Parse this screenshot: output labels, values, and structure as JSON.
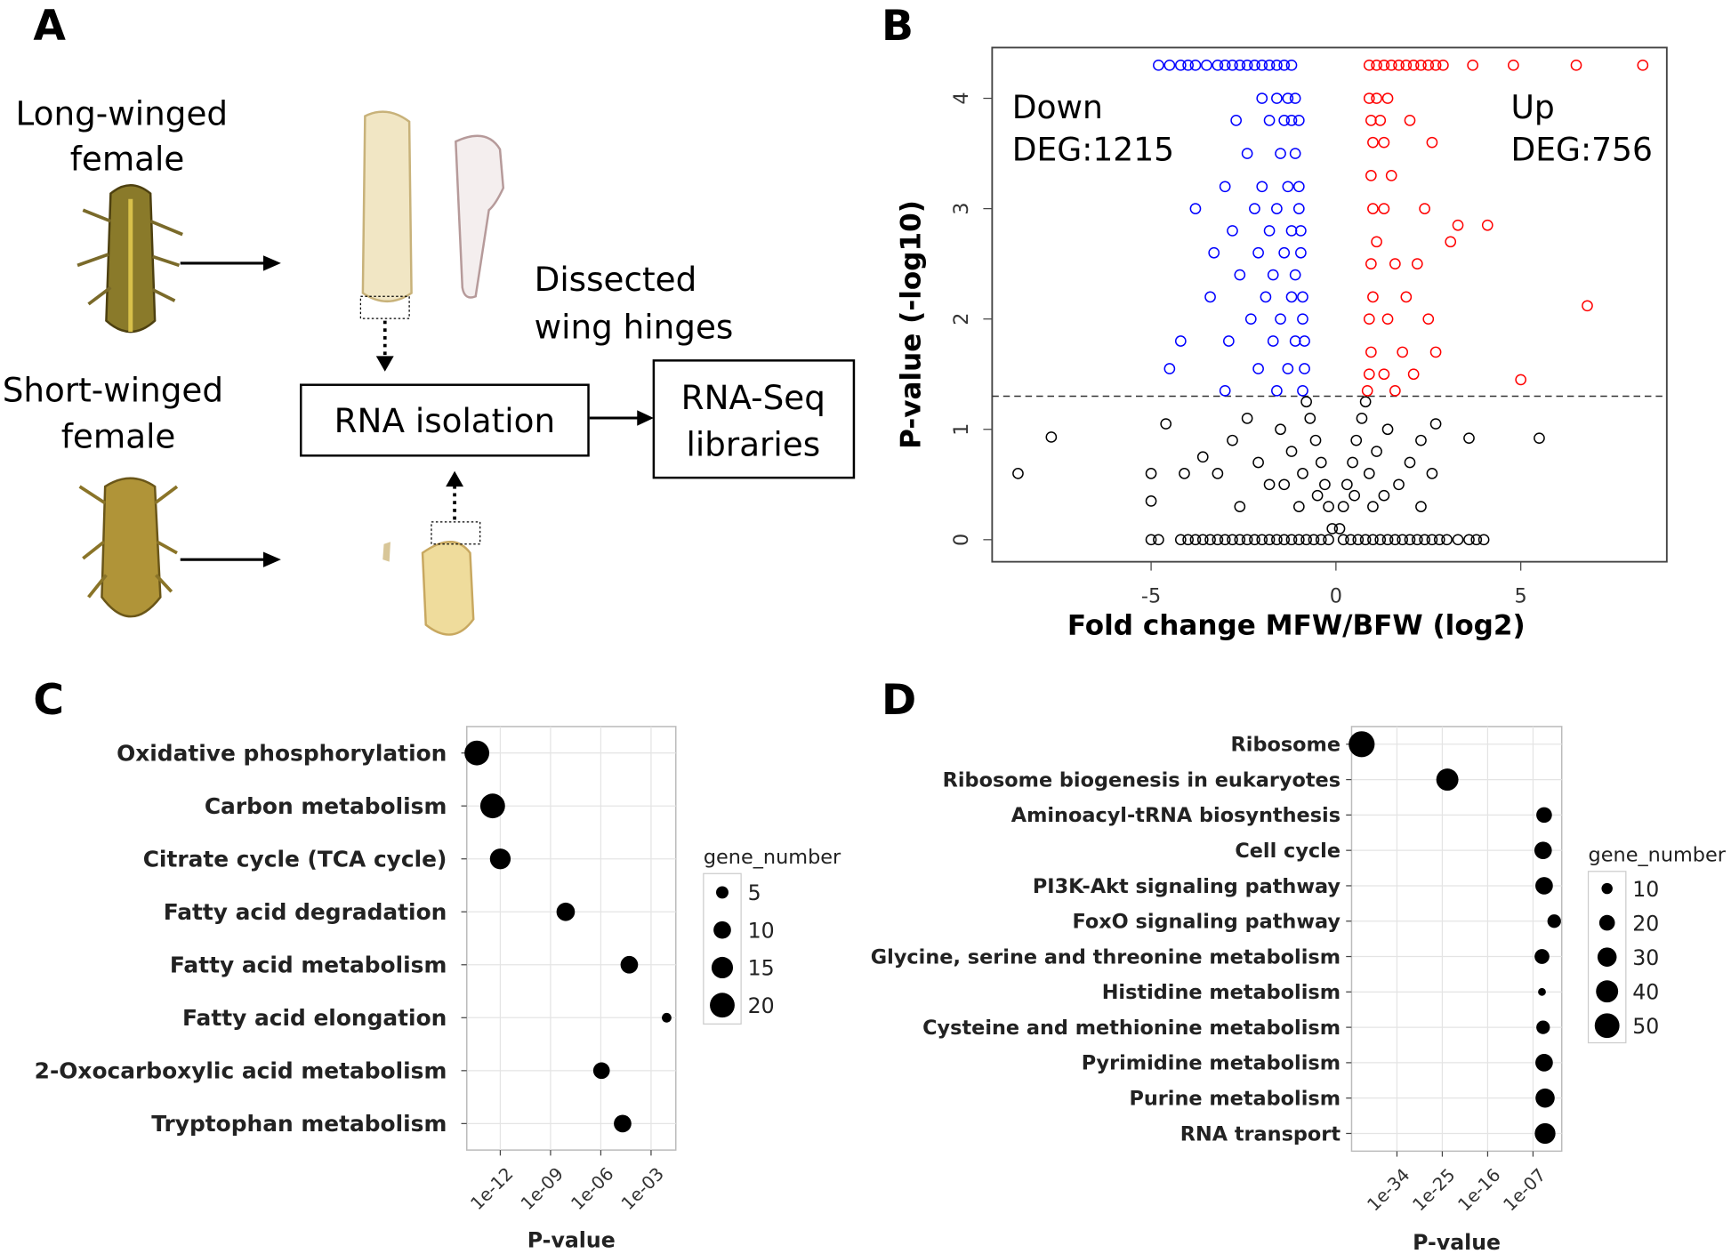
{
  "panel_labels": [
    "A",
    "B",
    "C",
    "D"
  ],
  "diagram": {
    "long_winged": [
      "Long-winged",
      "female"
    ],
    "short_winged": [
      "Short-winged",
      "female"
    ],
    "dissected": [
      "Dissected",
      "wing hinges"
    ],
    "rna_isolation": "RNA isolation",
    "libraries": [
      "RNA-Seq",
      "libraries"
    ]
  },
  "chart_data": [
    {
      "type": "scatter",
      "xlabel": "Fold change MFW/BFW (log2)",
      "ylabel": "P-value  (-log10)",
      "annotations": [
        "Down",
        "DEG:1215",
        "Up",
        "DEG:756"
      ],
      "xlim": [
        -9.3,
        8.95
      ],
      "ylim": [
        -0.2,
        4.46
      ],
      "xticks": [
        -5,
        0,
        5
      ],
      "yticks": [
        0,
        1,
        2,
        3,
        4
      ],
      "hline": 1.3,
      "series": [
        {
          "color": "#0000ff",
          "x": [
            -4.8,
            -4.5,
            -4.2,
            -4.0,
            -3.8,
            -3.5,
            -3.2,
            -3.0,
            -2.8,
            -2.6,
            -2.4,
            -2.2,
            -2.0,
            -1.8,
            -1.6,
            -1.4,
            -1.2,
            -2.0,
            -1.6,
            -1.3,
            -1.1,
            -2.7,
            -1.8,
            -1.4,
            -1.2,
            -1.0,
            -2.4,
            -1.5,
            -1.1,
            -3.0,
            -2.0,
            -1.3,
            -1.0,
            -3.8,
            -2.2,
            -1.6,
            -1.0,
            -2.8,
            -1.8,
            -1.2,
            -0.95,
            -3.3,
            -2.1,
            -1.4,
            -0.95,
            -2.6,
            -1.7,
            -1.1,
            -3.4,
            -1.9,
            -1.2,
            -0.9,
            -2.3,
            -1.5,
            -0.9,
            -4.2,
            -2.9,
            -1.7,
            -1.1,
            -0.85,
            -4.5,
            -2.1,
            -1.3,
            -0.85,
            -3.0,
            -1.6,
            -0.9
          ],
          "values": [
            4.3,
            4.3,
            4.3,
            4.3,
            4.3,
            4.3,
            4.3,
            4.3,
            4.3,
            4.3,
            4.3,
            4.3,
            4.3,
            4.3,
            4.3,
            4.3,
            4.3,
            4.0,
            4.0,
            4.0,
            4.0,
            3.8,
            3.8,
            3.8,
            3.8,
            3.8,
            3.5,
            3.5,
            3.5,
            3.2,
            3.2,
            3.2,
            3.2,
            3.0,
            3.0,
            3.0,
            3.0,
            2.8,
            2.8,
            2.8,
            2.8,
            2.6,
            2.6,
            2.6,
            2.6,
            2.4,
            2.4,
            2.4,
            2.2,
            2.2,
            2.2,
            2.2,
            2.0,
            2.0,
            2.0,
            1.8,
            1.8,
            1.8,
            1.8,
            1.8,
            1.55,
            1.55,
            1.55,
            1.55,
            1.35,
            1.35,
            1.35
          ]
        },
        {
          "color": "#ff0000",
          "x": [
            0.9,
            1.1,
            1.3,
            1.5,
            1.7,
            1.9,
            2.1,
            2.3,
            2.5,
            2.7,
            2.9,
            3.7,
            4.8,
            6.5,
            8.3,
            0.9,
            1.1,
            1.4,
            0.95,
            1.2,
            2.0,
            1.0,
            1.3,
            2.6,
            0.95,
            1.5,
            1.0,
            1.3,
            2.4,
            3.3,
            4.1,
            1.1,
            3.1,
            0.95,
            1.6,
            2.2,
            1.0,
            1.9,
            6.8,
            0.9,
            1.4,
            2.5,
            0.95,
            1.8,
            2.7,
            0.9,
            1.3,
            2.1,
            5.0,
            0.85,
            1.6
          ],
          "values": [
            4.3,
            4.3,
            4.3,
            4.3,
            4.3,
            4.3,
            4.3,
            4.3,
            4.3,
            4.3,
            4.3,
            4.3,
            4.3,
            4.3,
            4.3,
            4.0,
            4.0,
            4.0,
            3.8,
            3.8,
            3.8,
            3.6,
            3.6,
            3.6,
            3.3,
            3.3,
            3.0,
            3.0,
            3.0,
            2.85,
            2.85,
            2.7,
            2.7,
            2.5,
            2.5,
            2.5,
            2.2,
            2.2,
            2.12,
            2.0,
            2.0,
            2.0,
            1.7,
            1.7,
            1.7,
            1.5,
            1.5,
            1.5,
            1.45,
            1.35,
            1.35
          ]
        },
        {
          "color": "#000000",
          "x": [
            -5.0,
            -4.8,
            -4.2,
            -4.0,
            -3.8,
            -3.6,
            -3.4,
            -3.2,
            -3.0,
            -2.8,
            -2.6,
            -2.4,
            -2.2,
            -2.0,
            -1.8,
            -1.6,
            -1.4,
            -1.2,
            -1.0,
            -0.8,
            -0.6,
            -0.4,
            -0.2,
            0.2,
            0.4,
            0.6,
            0.8,
            1.0,
            1.2,
            1.4,
            1.6,
            1.8,
            2.0,
            2.2,
            2.4,
            2.6,
            2.8,
            3.0,
            3.3,
            3.6,
            3.8,
            4.0,
            -0.1,
            0.1,
            -0.2,
            0.2,
            -0.3,
            0.3,
            -0.4,
            0.45,
            -0.55,
            0.55,
            -0.7,
            0.7,
            -0.8,
            0.8,
            -0.5,
            0.5,
            -0.9,
            0.9,
            -1.2,
            1.1,
            -1.5,
            1.4,
            -1.8,
            1.7,
            -2.1,
            2.0,
            -2.4,
            2.3,
            -2.8,
            2.6,
            -3.2,
            2.7,
            -3.6,
            -4.1,
            -4.6,
            -5.0,
            -5.0,
            -7.7,
            -8.6,
            3.6,
            5.5,
            -1.0,
            1.0,
            -1.4,
            1.3,
            -2.6,
            2.3
          ],
          "values": [
            0,
            0,
            0,
            0,
            0,
            0,
            0,
            0,
            0,
            0,
            0,
            0,
            0,
            0,
            0,
            0,
            0,
            0,
            0,
            0,
            0,
            0,
            0,
            0,
            0,
            0,
            0,
            0,
            0,
            0,
            0,
            0,
            0,
            0,
            0,
            0,
            0,
            0,
            0,
            0,
            0,
            0,
            0.1,
            0.1,
            0.3,
            0.3,
            0.5,
            0.5,
            0.7,
            0.7,
            0.9,
            0.9,
            1.1,
            1.1,
            1.25,
            1.25,
            0.4,
            0.4,
            0.6,
            0.6,
            0.8,
            0.8,
            1.0,
            1.0,
            0.5,
            0.5,
            0.7,
            0.7,
            1.1,
            0.9,
            0.9,
            0.6,
            0.6,
            1.05,
            0.75,
            0.6,
            1.05,
            0.6,
            0.35,
            0.93,
            0.6,
            0.92,
            0.92,
            0.3,
            0.3,
            0.5,
            0.4,
            0.3,
            0.3
          ]
        }
      ]
    },
    {
      "type": "dot",
      "xlabel": "P-value",
      "xscale": "log",
      "grid": true,
      "color": "#000000",
      "categories": [
        "Oxidative phosphorylation",
        "Carbon metabolism",
        "Citrate cycle (TCA cycle)",
        "Fatty acid degradation",
        "Fatty acid metabolism",
        "Fatty acid elongation",
        "2-Oxocarboxylic acid metabolism",
        "Tryptophan metabolism"
      ],
      "values": [
        4e-14,
        3.5e-13,
        1e-12,
        8e-09,
        5e-05,
        0.0085,
        1.1e-06,
        2e-05
      ],
      "sizes": [
        20,
        20,
        14,
        11,
        10,
        3,
        9,
        10
      ],
      "xlim": [
        1e-14,
        0.03
      ],
      "xticks": [
        {
          "value": 1e-12,
          "label": "1e-12"
        },
        {
          "value": 1e-09,
          "label": "1e-09"
        },
        {
          "value": 1e-06,
          "label": "1e-06"
        },
        {
          "value": 0.001,
          "label": "1e-03"
        }
      ],
      "size_legend": {
        "title": "gene_number",
        "values": [
          5,
          10,
          15,
          20
        ]
      }
    },
    {
      "type": "dot",
      "xlabel": "P-value",
      "xscale": "log",
      "grid": true,
      "color": "#000000",
      "categories": [
        "Ribosome",
        "Ribosome biogenesis in eukaryotes",
        "Aminoacyl-tRNA biosynthesis",
        "Cell cycle",
        "PI3K-Akt signaling pathway",
        "FoxO signaling pathway",
        "Glycine, serine and threonine metabolism",
        "Histidine metabolism",
        "Cysteine and methionine metabolism",
        "Pyrimidine metabolism",
        "Purine metabolism",
        "RNA transport"
      ],
      "values": [
        1e-41,
        1e-24,
        1.6e-05,
        1e-05,
        1.6e-05,
        0.0016,
        6e-06,
        6e-06,
        1e-05,
        1.6e-05,
        2.5e-05,
        2.5e-05
      ],
      "sizes": [
        55,
        40,
        20,
        25,
        25,
        15,
        18,
        5,
        15,
        25,
        30,
        35
      ],
      "xlim": [
        1e-43,
        0.05
      ],
      "xticks": [
        {
          "value": 1e-34,
          "label": "1e-34"
        },
        {
          "value": 1e-25,
          "label": "1e-25"
        },
        {
          "value": 1e-16,
          "label": "1e-16"
        },
        {
          "value": 1e-07,
          "label": "1e-07"
        }
      ],
      "size_legend": {
        "title": "gene_number",
        "values": [
          10,
          20,
          30,
          40,
          50
        ]
      }
    }
  ]
}
